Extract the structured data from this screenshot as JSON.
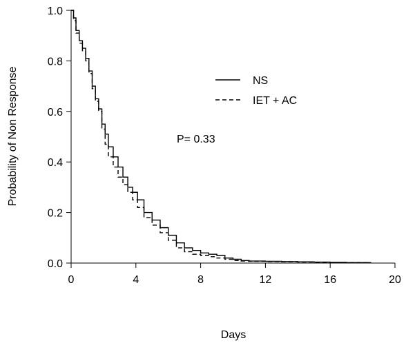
{
  "chart_data": {
    "type": "line",
    "title": "",
    "xlabel": "Days",
    "ylabel": "Probability of Non Response",
    "xlim": [
      0,
      20
    ],
    "ylim": [
      0,
      1
    ],
    "xticks": [
      0,
      4,
      8,
      12,
      16,
      20
    ],
    "yticks": [
      0.0,
      0.2,
      0.4,
      0.6,
      0.8,
      1.0
    ],
    "xtick_labels": [
      "0",
      "4",
      "8",
      "12",
      "16",
      "20"
    ],
    "ytick_labels": [
      "0.0",
      "0.2",
      "0.4",
      "0.6",
      "0.8",
      "1.0"
    ],
    "grid": false,
    "legend_position": "upper-right",
    "annotation": "P= 0.33",
    "series": [
      {
        "name": "NS",
        "style": "solid",
        "color": "#000000",
        "x": [
          0,
          0.15,
          0.3,
          0.5,
          0.7,
          0.9,
          1.1,
          1.3,
          1.5,
          1.7,
          1.9,
          2.1,
          2.3,
          2.6,
          2.9,
          3.2,
          3.5,
          3.8,
          4.1,
          4.5,
          5.0,
          5.5,
          6.0,
          6.5,
          7.0,
          7.5,
          8.0,
          8.5,
          9.0,
          9.5,
          10.0,
          10.5,
          11.0,
          12.0,
          13.0,
          14.0,
          15.0,
          16.0,
          17.0,
          18.5
        ],
        "y": [
          1.0,
          0.97,
          0.92,
          0.88,
          0.85,
          0.81,
          0.76,
          0.7,
          0.65,
          0.61,
          0.55,
          0.51,
          0.46,
          0.42,
          0.38,
          0.34,
          0.3,
          0.28,
          0.25,
          0.2,
          0.17,
          0.14,
          0.11,
          0.08,
          0.06,
          0.05,
          0.04,
          0.035,
          0.03,
          0.02,
          0.015,
          0.01,
          0.008,
          0.007,
          0.006,
          0.005,
          0.004,
          0.003,
          0.002,
          0.002
        ]
      },
      {
        "name": "IET + AC",
        "style": "dashed",
        "color": "#000000",
        "x": [
          0,
          0.15,
          0.3,
          0.5,
          0.7,
          0.9,
          1.1,
          1.3,
          1.5,
          1.7,
          1.9,
          2.1,
          2.3,
          2.6,
          2.9,
          3.2,
          3.5,
          3.8,
          4.1,
          4.5,
          5.0,
          5.5,
          6.0,
          6.5,
          7.0,
          7.5,
          8.0,
          8.5,
          9.0,
          9.5,
          10.0,
          10.5,
          11.0,
          12.0,
          13.0,
          14.0,
          15.0,
          16.0,
          17.0,
          18.5
        ],
        "y": [
          1.0,
          0.96,
          0.91,
          0.87,
          0.84,
          0.8,
          0.75,
          0.69,
          0.64,
          0.6,
          0.53,
          0.47,
          0.42,
          0.38,
          0.34,
          0.31,
          0.28,
          0.25,
          0.22,
          0.18,
          0.15,
          0.12,
          0.09,
          0.06,
          0.045,
          0.035,
          0.03,
          0.025,
          0.02,
          0.015,
          0.01,
          0.008,
          0.007,
          0.006,
          0.005,
          0.004,
          0.003,
          0.002,
          0.002,
          0.001
        ]
      }
    ]
  }
}
